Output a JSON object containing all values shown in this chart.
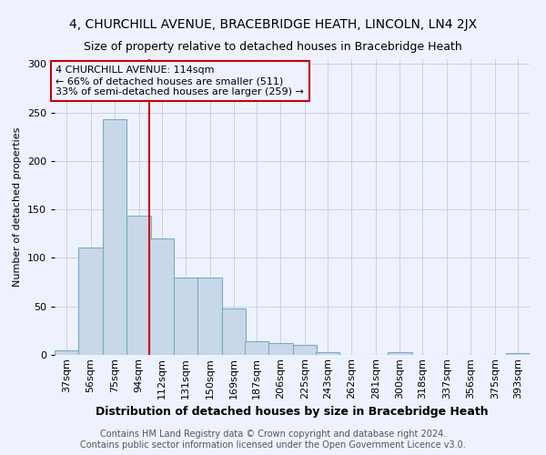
{
  "title1": "4, CHURCHILL AVENUE, BRACEBRIDGE HEATH, LINCOLN, LN4 2JX",
  "title2": "Size of property relative to detached houses in Bracebridge Heath",
  "xlabel": "Distribution of detached houses by size in Bracebridge Heath",
  "ylabel": "Number of detached properties",
  "footer1": "Contains HM Land Registry data © Crown copyright and database right 2024.",
  "footer2": "Contains public sector information licensed under the Open Government Licence v3.0.",
  "annotation_line1": "4 CHURCHILL AVENUE: 114sqm",
  "annotation_line2": "← 66% of detached houses are smaller (511)",
  "annotation_line3": "33% of semi-detached houses are larger (259) →",
  "bar_color": "#c8d8e8",
  "bar_edge_color": "#7aaac8",
  "reference_line_color": "#cc0000",
  "reference_line_x": 112,
  "bins": [
    37,
    56,
    75,
    94,
    112,
    131,
    150,
    169,
    187,
    206,
    225,
    243,
    262,
    281,
    300,
    318,
    337,
    356,
    375,
    393,
    412
  ],
  "heights": [
    5,
    111,
    243,
    144,
    120,
    80,
    80,
    48,
    14,
    12,
    10,
    3,
    0,
    0,
    3,
    0,
    0,
    0,
    0,
    2
  ],
  "ylim": [
    0,
    305
  ],
  "yticks": [
    0,
    50,
    100,
    150,
    200,
    250,
    300
  ],
  "bg_color": "#eef2ff",
  "grid_color": "#c8d0e8",
  "title1_fontsize": 10,
  "title2_fontsize": 9,
  "xlabel_fontsize": 9,
  "ylabel_fontsize": 8,
  "tick_fontsize": 8,
  "footer_fontsize": 7,
  "ann_fontsize": 8
}
